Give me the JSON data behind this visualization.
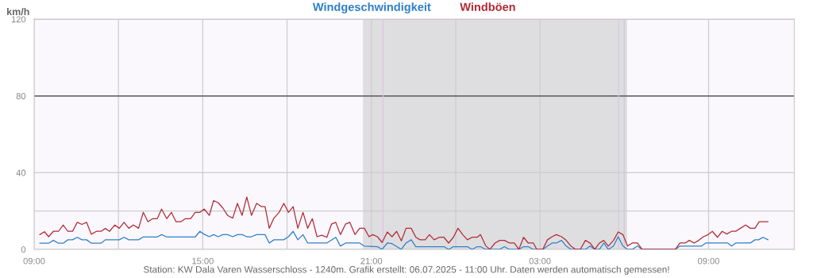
{
  "chart_data": {
    "type": "line",
    "ylabel": "km/h",
    "legend": "top",
    "grid": true,
    "line_style": "solid",
    "marker": "none",
    "xlim": [
      "2025-07-05T09:00",
      "2025-07-06T12:03"
    ],
    "xticks": [
      {
        "value": "2025-07-05T09:00",
        "label": "09:00"
      },
      {
        "value": "2025-07-05T12:00",
        "label": null
      },
      {
        "value": "2025-07-05T15:00",
        "label": "15:00"
      },
      {
        "value": "2025-07-05T18:00",
        "label": null
      },
      {
        "value": "2025-07-05T21:00",
        "label": "21:00"
      },
      {
        "value": "2025-07-06T00:00",
        "label": null
      },
      {
        "value": "2025-07-06T03:00",
        "label": "03:00"
      },
      {
        "value": "2025-07-06T06:00",
        "label": null
      },
      {
        "value": "2025-07-06T09:00",
        "label": "09:00"
      }
    ],
    "ylim": [
      0,
      120
    ],
    "yticks": [
      0,
      {
        "value": 20,
        "label": null
      },
      40,
      80,
      120
    ],
    "bands": [
      {
        "axis": "x",
        "from": "2025-07-05T20:42",
        "to": "2025-07-06T06:06",
        "color": "#dedee1"
      }
    ],
    "ref_lines": [
      {
        "axis": "y",
        "value": 80,
        "color": "#444444"
      },
      {
        "axis": "y",
        "value": 120,
        "color": "#ee82ee"
      },
      {
        "axis": "x",
        "value": "2025-07-05T21:25",
        "color": "#d8c8e0"
      },
      {
        "axis": "x",
        "value": "2025-07-06T05:48",
        "color": "#d8c8e0"
      }
    ],
    "annotations": [
      "Station: KW Dala Varen Wasserschloss - 1240m. Grafik erstellt: 06.07.2025 - 11:00 Uhr. Daten werden automatisch gemessen!"
    ],
    "series": [
      {
        "name": "Windgeschwindigkeit",
        "color": "#2f7fc8",
        "x": [
          "2025-07-05T09:12",
          "2025-07-05T09:31",
          "2025-07-05T09:41",
          "2025-07-05T09:52",
          "2025-07-05T10:02",
          "2025-07-05T10:12",
          "2025-07-05T10:22",
          "2025-07-05T10:32",
          "2025-07-05T10:42",
          "2025-07-05T10:52",
          "2025-07-05T11:02",
          "2025-07-05T11:23",
          "2025-07-05T11:32",
          "2025-07-05T12:02",
          "2025-07-05T12:12",
          "2025-07-05T12:22",
          "2025-07-05T12:43",
          "2025-07-05T12:53",
          "2025-07-05T13:23",
          "2025-07-05T13:32",
          "2025-07-05T13:43",
          "2025-07-05T14:44",
          "2025-07-05T14:54",
          "2025-07-05T15:02",
          "2025-07-05T15:14",
          "2025-07-05T15:23",
          "2025-07-05T15:33",
          "2025-07-05T15:43",
          "2025-07-05T15:53",
          "2025-07-05T16:04",
          "2025-07-05T16:14",
          "2025-07-05T16:24",
          "2025-07-05T16:34",
          "2025-07-05T16:44",
          "2025-07-05T16:55",
          "2025-07-05T17:13",
          "2025-07-05T17:22",
          "2025-07-05T17:32",
          "2025-07-05T17:53",
          "2025-07-05T18:03",
          "2025-07-05T18:13",
          "2025-07-05T18:23",
          "2025-07-05T18:34",
          "2025-07-05T18:44",
          "2025-07-05T19:25",
          "2025-07-05T19:44",
          "2025-07-05T19:54",
          "2025-07-05T20:05",
          "2025-07-05T20:35",
          "2025-07-05T20:45",
          "2025-07-05T21:13",
          "2025-07-05T21:23",
          "2025-07-05T21:34",
          "2025-07-05T21:44",
          "2025-07-05T22:04",
          "2025-07-05T22:14",
          "2025-07-05T22:25",
          "2025-07-05T22:35",
          "2025-07-05T23:35",
          "2025-07-05T23:45",
          "2025-07-05T23:55",
          "2025-07-06T00:25",
          "2025-07-06T00:35",
          "2025-07-06T00:46",
          "2025-07-06T00:53",
          "2025-07-06T01:04",
          "2025-07-06T01:34",
          "2025-07-06T01:44",
          "2025-07-06T01:55",
          "2025-07-06T02:15",
          "2025-07-06T02:25",
          "2025-07-06T02:35",
          "2025-07-06T02:46",
          "2025-07-06T03:06",
          "2025-07-06T03:16",
          "2025-07-06T03:26",
          "2025-07-06T03:35",
          "2025-07-06T03:46",
          "2025-07-06T03:56",
          "2025-07-06T04:06",
          "2025-07-06T04:37",
          "2025-07-06T04:47",
          "2025-07-06T04:57",
          "2025-07-06T05:07",
          "2025-07-06T05:16",
          "2025-07-06T05:26",
          "2025-07-06T05:37",
          "2025-07-06T05:47",
          "2025-07-06T05:57",
          "2025-07-06T06:07",
          "2025-07-06T06:17",
          "2025-07-06T06:28",
          "2025-07-06T06:38",
          "2025-07-06T07:49",
          "2025-07-06T07:59",
          "2025-07-06T08:45",
          "2025-07-06T08:54",
          "2025-07-06T09:41",
          "2025-07-06T09:49",
          "2025-07-06T09:58",
          "2025-07-06T10:29",
          "2025-07-06T10:39",
          "2025-07-06T10:47",
          "2025-07-06T10:56",
          "2025-07-06T11:07"
        ],
        "values": [
          3.2,
          3.2,
          4.7,
          3.2,
          3.2,
          5,
          5,
          6.3,
          5,
          5,
          3.2,
          3.2,
          5,
          5,
          6.3,
          5,
          5,
          6.5,
          6.5,
          7.7,
          6.5,
          6.5,
          9.4,
          8,
          6.6,
          7.7,
          6.6,
          7.7,
          7.7,
          6.6,
          7.7,
          7.7,
          6.6,
          6.6,
          7.7,
          7.7,
          3.3,
          5,
          5,
          6.6,
          9.4,
          5,
          7.7,
          3.3,
          3.3,
          6.3,
          1.7,
          3.3,
          3.3,
          1.7,
          1.4,
          0,
          3.3,
          3,
          0,
          3.3,
          5,
          1.4,
          1.4,
          0,
          1.4,
          1.4,
          0,
          1.4,
          1.4,
          0,
          0,
          1.4,
          0,
          0,
          1.4,
          1.4,
          0,
          0,
          1.7,
          3.3,
          3.3,
          4.7,
          1.7,
          0,
          0,
          1.7,
          0,
          0,
          3.3,
          0,
          1.7,
          6.6,
          1.7,
          0,
          0,
          1.7,
          0,
          0,
          1.7,
          1.7,
          3.3,
          3.3,
          1.7,
          3.3,
          3.3,
          5,
          5,
          6.3,
          5
        ]
      },
      {
        "name": "Windböen",
        "color": "#b22a35",
        "x": [
          "2025-07-05T09:12",
          "2025-07-05T09:22",
          "2025-07-05T09:31",
          "2025-07-05T09:41",
          "2025-07-05T09:52",
          "2025-07-05T10:02",
          "2025-07-05T10:12",
          "2025-07-05T10:22",
          "2025-07-05T10:32",
          "2025-07-05T10:42",
          "2025-07-05T10:52",
          "2025-07-05T11:02",
          "2025-07-05T11:13",
          "2025-07-05T11:23",
          "2025-07-05T11:32",
          "2025-07-05T11:41",
          "2025-07-05T11:52",
          "2025-07-05T12:02",
          "2025-07-05T12:12",
          "2025-07-05T12:22",
          "2025-07-05T12:32",
          "2025-07-05T12:43",
          "2025-07-05T12:53",
          "2025-07-05T13:03",
          "2025-07-05T13:13",
          "2025-07-05T13:23",
          "2025-07-05T13:32",
          "2025-07-05T13:43",
          "2025-07-05T13:53",
          "2025-07-05T14:03",
          "2025-07-05T14:13",
          "2025-07-05T14:23",
          "2025-07-05T14:34",
          "2025-07-05T14:44",
          "2025-07-05T14:54",
          "2025-07-05T15:03",
          "2025-07-05T15:14",
          "2025-07-05T15:23",
          "2025-07-05T15:33",
          "2025-07-05T15:43",
          "2025-07-05T15:53",
          "2025-07-05T16:04",
          "2025-07-05T16:14",
          "2025-07-05T16:24",
          "2025-07-05T16:34",
          "2025-07-05T16:44",
          "2025-07-05T16:55",
          "2025-07-05T17:05",
          "2025-07-05T17:13",
          "2025-07-05T17:22",
          "2025-07-05T17:32",
          "2025-07-05T17:43",
          "2025-07-05T17:53",
          "2025-07-05T18:03",
          "2025-07-05T18:13",
          "2025-07-05T18:23",
          "2025-07-05T18:34",
          "2025-07-05T18:44",
          "2025-07-05T18:54",
          "2025-07-05T19:04",
          "2025-07-05T19:14",
          "2025-07-05T19:25",
          "2025-07-05T19:35",
          "2025-07-05T19:44",
          "2025-07-05T19:54",
          "2025-07-05T20:05",
          "2025-07-05T20:14",
          "2025-07-05T20:25",
          "2025-07-05T20:35",
          "2025-07-05T20:45",
          "2025-07-05T20:55",
          "2025-07-05T21:03",
          "2025-07-05T21:13",
          "2025-07-05T21:23",
          "2025-07-05T21:34",
          "2025-07-05T21:44",
          "2025-07-05T21:54",
          "2025-07-05T22:04",
          "2025-07-05T22:14",
          "2025-07-05T22:25",
          "2025-07-05T22:35",
          "2025-07-05T22:44",
          "2025-07-05T22:55",
          "2025-07-05T23:04",
          "2025-07-05T23:14",
          "2025-07-05T23:25",
          "2025-07-05T23:35",
          "2025-07-05T23:45",
          "2025-07-05T23:55",
          "2025-07-06T00:05",
          "2025-07-06T00:15",
          "2025-07-06T00:25",
          "2025-07-06T00:35",
          "2025-07-06T00:46",
          "2025-07-06T00:53",
          "2025-07-06T01:04",
          "2025-07-06T01:13",
          "2025-07-06T01:24",
          "2025-07-06T01:34",
          "2025-07-06T01:44",
          "2025-07-06T01:55",
          "2025-07-06T02:05",
          "2025-07-06T02:15",
          "2025-07-06T02:25",
          "2025-07-06T02:35",
          "2025-07-06T02:46",
          "2025-07-06T02:53",
          "2025-07-06T03:06",
          "2025-07-06T03:16",
          "2025-07-06T03:26",
          "2025-07-06T03:35",
          "2025-07-06T03:46",
          "2025-07-06T03:56",
          "2025-07-06T04:06",
          "2025-07-06T04:16",
          "2025-07-06T04:26",
          "2025-07-06T04:37",
          "2025-07-06T04:47",
          "2025-07-06T04:57",
          "2025-07-06T05:07",
          "2025-07-06T05:16",
          "2025-07-06T05:26",
          "2025-07-06T05:37",
          "2025-07-06T05:47",
          "2025-07-06T05:57",
          "2025-07-06T06:07",
          "2025-07-06T06:17",
          "2025-07-06T06:28",
          "2025-07-06T06:38",
          "2025-07-06T07:49",
          "2025-07-06T07:59",
          "2025-07-06T08:10",
          "2025-07-06T08:19",
          "2025-07-06T08:29",
          "2025-07-06T08:39",
          "2025-07-06T08:49",
          "2025-07-06T08:59",
          "2025-07-06T09:08",
          "2025-07-06T09:19",
          "2025-07-06T09:29",
          "2025-07-06T09:39",
          "2025-07-06T09:49",
          "2025-07-06T09:58",
          "2025-07-06T10:08",
          "2025-07-06T10:19",
          "2025-07-06T10:29",
          "2025-07-06T10:39",
          "2025-07-06T10:48",
          "2025-07-06T11:07"
        ],
        "values": [
          7.7,
          9.2,
          6.6,
          9.4,
          9.4,
          12.7,
          9.4,
          9.4,
          14.1,
          13,
          14.1,
          7.9,
          9.4,
          9.4,
          10.9,
          9.4,
          12.7,
          11,
          14.1,
          11,
          12.7,
          11,
          19.3,
          14.4,
          16,
          16,
          21,
          16,
          19.3,
          14.4,
          14.4,
          16,
          16,
          19.3,
          19.3,
          21,
          17.7,
          25.4,
          24.3,
          21.5,
          17.7,
          16.3,
          24,
          17.7,
          27.3,
          17.7,
          24,
          22.3,
          22.3,
          11,
          16.3,
          19.3,
          24,
          19.3,
          22.3,
          11,
          19.3,
          11,
          16,
          6.6,
          7.4,
          6.3,
          13.2,
          14.1,
          7.7,
          13.2,
          14.1,
          7.7,
          11,
          11,
          6.6,
          7.7,
          6.6,
          3.6,
          9.1,
          6.6,
          9.4,
          4.4,
          11,
          11,
          6.3,
          5,
          5,
          7.7,
          5,
          6.3,
          6.3,
          3.3,
          6.3,
          11,
          7.7,
          5,
          6.3,
          6.3,
          7.7,
          1.9,
          0,
          3.3,
          4.7,
          4.7,
          3.3,
          3.3,
          0,
          6.3,
          3.3,
          3.3,
          0,
          0,
          5,
          6.6,
          7.7,
          6.6,
          4.7,
          1.7,
          0,
          0,
          4.7,
          3.3,
          0,
          3.3,
          4.7,
          1.7,
          4.7,
          9.1,
          7.7,
          1.7,
          3.3,
          3.3,
          0,
          0,
          3.3,
          3.3,
          4.7,
          3.3,
          4.7,
          6.6,
          7.7,
          9.4,
          6.3,
          9.4,
          8,
          9.4,
          9.4,
          11,
          12.7,
          11,
          11,
          14.4,
          14.4
        ]
      }
    ]
  }
}
